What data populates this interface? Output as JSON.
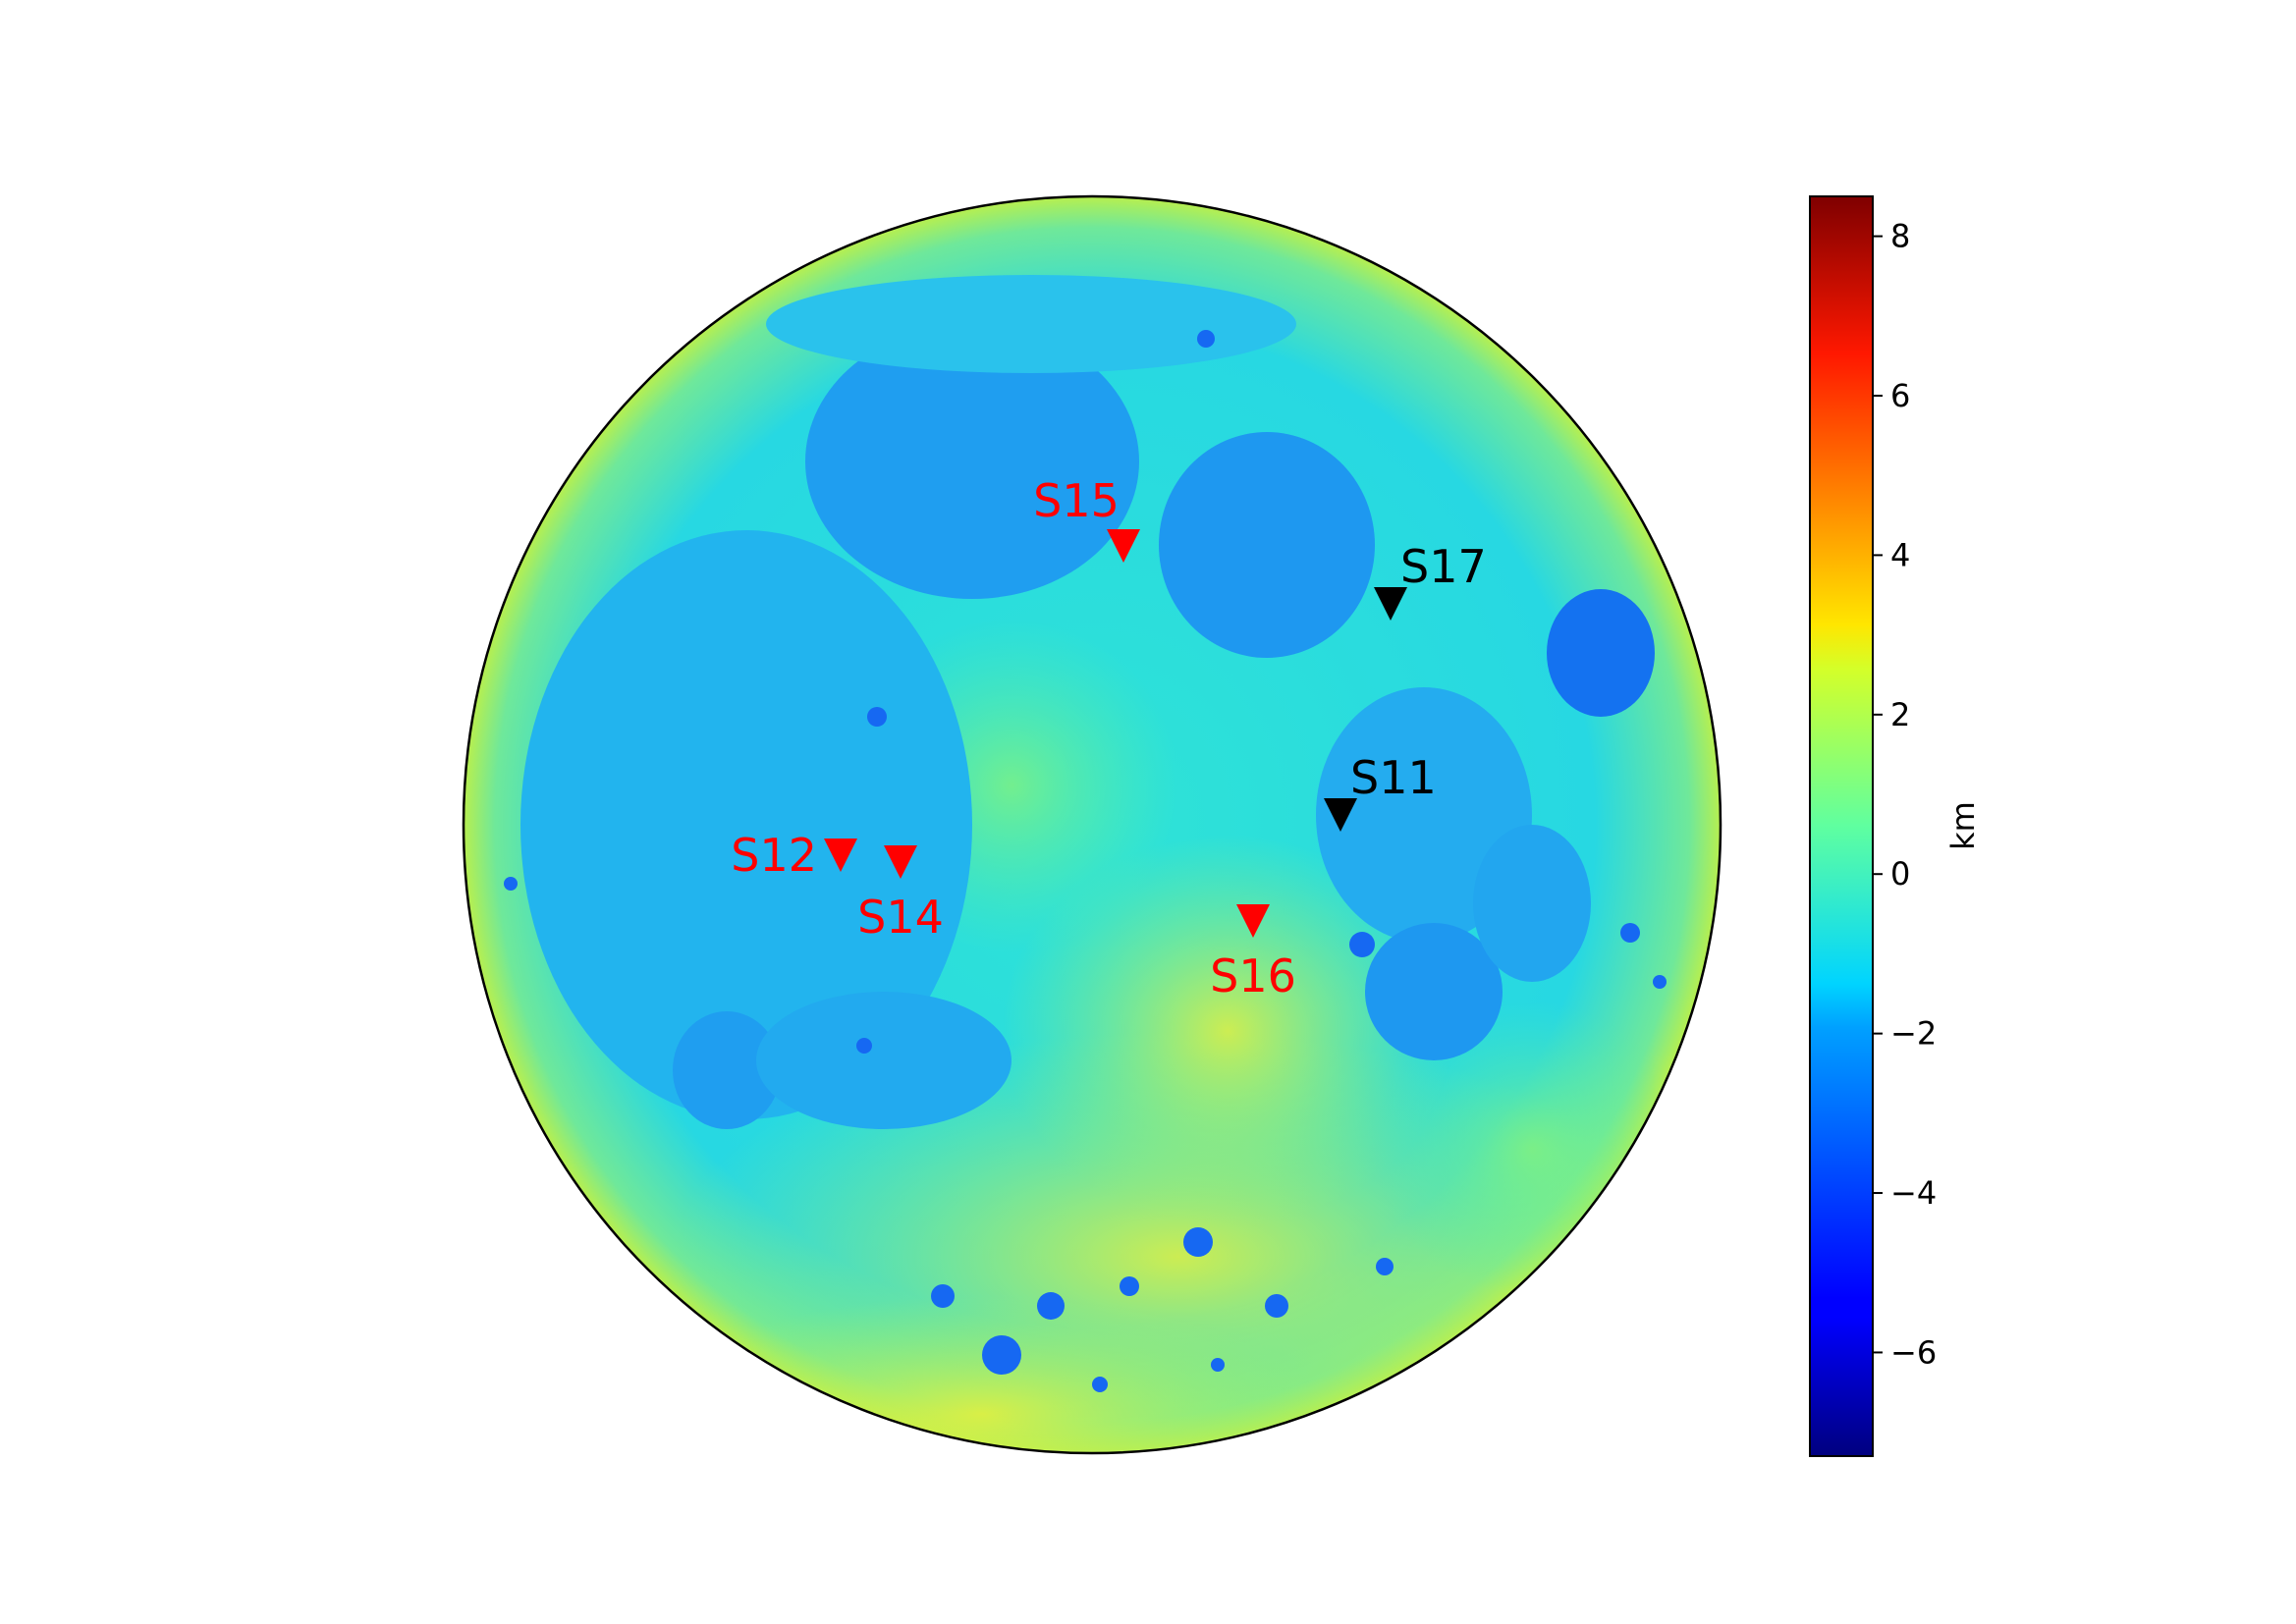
{
  "map": {
    "projection": "orthographic",
    "body": "Moon nearside",
    "quantity": "topography"
  },
  "stations": [
    {
      "id": "S11",
      "label": "S11",
      "color": "#000000",
      "label_position": "above-right"
    },
    {
      "id": "S12",
      "label": "S12",
      "color": "#ff0000",
      "label_position": "left"
    },
    {
      "id": "S14",
      "label": "S14",
      "color": "#ff0000",
      "label_position": "below"
    },
    {
      "id": "S15",
      "label": "S15",
      "color": "#ff0000",
      "label_position": "above-left"
    },
    {
      "id": "S16",
      "label": "S16",
      "color": "#ff0000",
      "label_position": "below"
    },
    {
      "id": "S17",
      "label": "S17",
      "color": "#000000",
      "label_position": "above-right"
    }
  ],
  "colorbar": {
    "label": "km",
    "colormap": "jet",
    "min": -7.3,
    "max": 8.5,
    "ticks": [
      {
        "value": 8,
        "label": "8"
      },
      {
        "value": 6,
        "label": "6"
      },
      {
        "value": 4,
        "label": "4"
      },
      {
        "value": 2,
        "label": "2"
      },
      {
        "value": 0,
        "label": "0"
      },
      {
        "value": -2,
        "label": "−2"
      },
      {
        "value": -4,
        "label": "−4"
      },
      {
        "value": -6,
        "label": "−6"
      }
    ]
  }
}
